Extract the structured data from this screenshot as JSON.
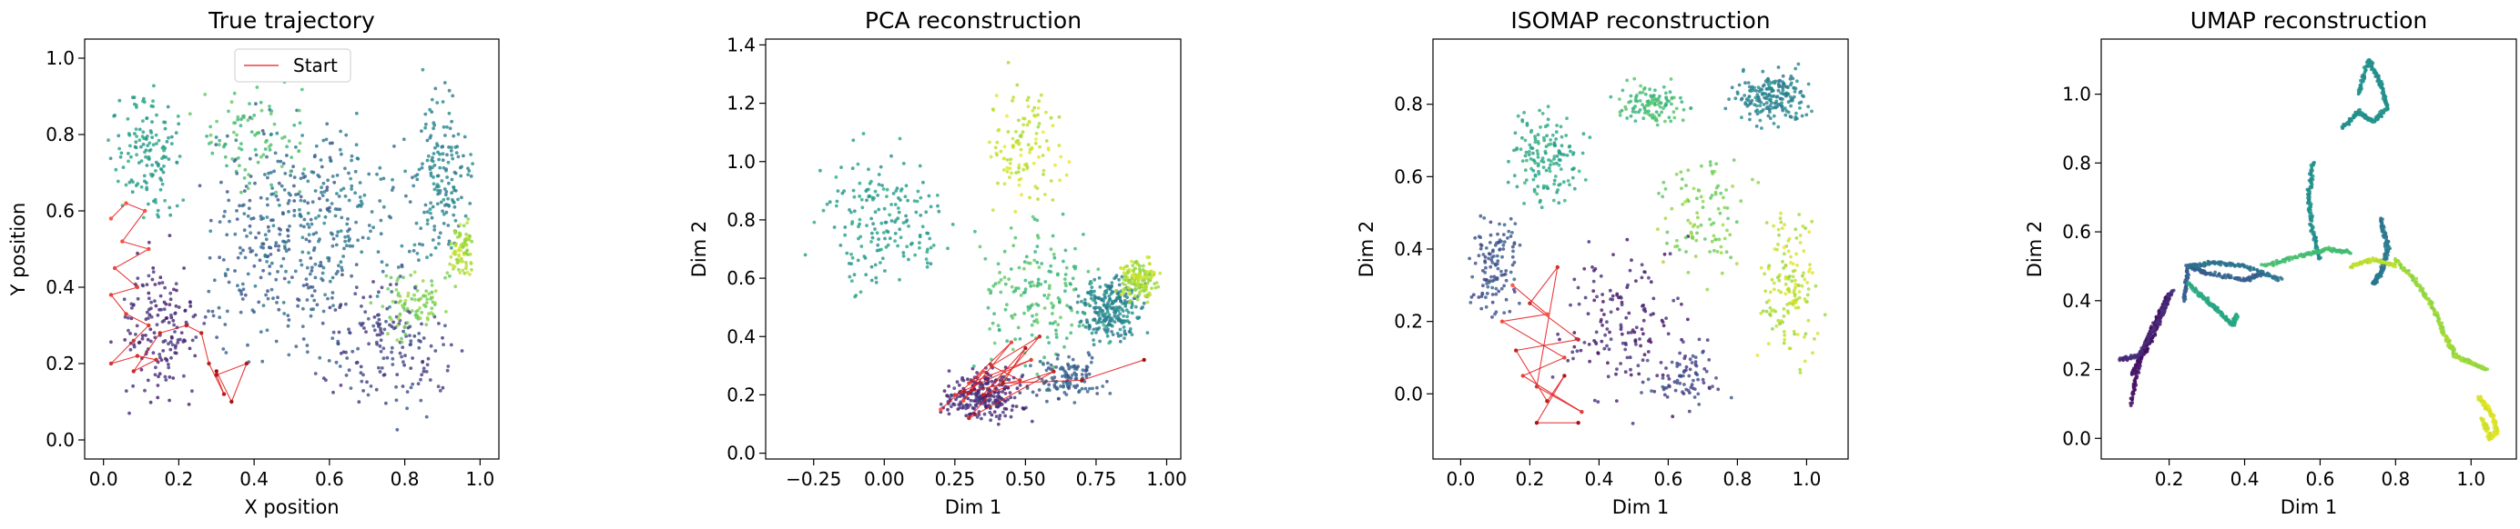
{
  "figure": {
    "colormap": "viridis",
    "trajectory_color": "#e41a1c"
  },
  "chart_data": [
    {
      "type": "scatter",
      "title": "True trajectory",
      "xlabel": "X position",
      "ylabel": "Y position",
      "xlim": [
        -0.05,
        1.05
      ],
      "ylim": [
        -0.05,
        1.05
      ],
      "xticks": [
        0.0,
        0.2,
        0.4,
        0.6,
        0.8,
        1.0
      ],
      "xtick_labels": [
        "0.0",
        "0.2",
        "0.4",
        "0.6",
        "0.8",
        "1.0"
      ],
      "yticks": [
        0.0,
        0.2,
        0.4,
        0.6,
        0.8,
        1.0
      ],
      "ytick_labels": [
        "0.0",
        "0.2",
        "0.4",
        "0.6",
        "0.8",
        "1.0"
      ],
      "legend": {
        "label": "Start",
        "location": "upper-center"
      },
      "clusters": [
        {
          "cx": 0.12,
          "cy": 0.75,
          "rx": 0.12,
          "ry": 0.22,
          "n": 140,
          "t": 0.55
        },
        {
          "cx": 0.15,
          "cy": 0.3,
          "rx": 0.15,
          "ry": 0.28,
          "n": 160,
          "t": 0.12
        },
        {
          "cx": 0.45,
          "cy": 0.5,
          "rx": 0.3,
          "ry": 0.45,
          "n": 260,
          "t": 0.3
        },
        {
          "cx": 0.4,
          "cy": 0.8,
          "rx": 0.2,
          "ry": 0.18,
          "n": 90,
          "t": 0.7
        },
        {
          "cx": 0.75,
          "cy": 0.25,
          "rx": 0.25,
          "ry": 0.25,
          "n": 170,
          "t": 0.2
        },
        {
          "cx": 0.9,
          "cy": 0.7,
          "rx": 0.1,
          "ry": 0.3,
          "n": 160,
          "t": 0.45
        },
        {
          "cx": 0.95,
          "cy": 0.5,
          "rx": 0.05,
          "ry": 0.12,
          "n": 80,
          "t": 0.88
        },
        {
          "cx": 0.82,
          "cy": 0.35,
          "rx": 0.12,
          "ry": 0.12,
          "n": 90,
          "t": 0.8
        },
        {
          "cx": 0.6,
          "cy": 0.6,
          "rx": 0.35,
          "ry": 0.35,
          "n": 200,
          "t": 0.4
        }
      ],
      "trajectory": [
        [
          0.02,
          0.58
        ],
        [
          0.06,
          0.62
        ],
        [
          0.11,
          0.6
        ],
        [
          0.05,
          0.52
        ],
        [
          0.12,
          0.5
        ],
        [
          0.03,
          0.45
        ],
        [
          0.09,
          0.4
        ],
        [
          0.02,
          0.38
        ],
        [
          0.06,
          0.33
        ],
        [
          0.12,
          0.3
        ],
        [
          0.08,
          0.26
        ],
        [
          0.02,
          0.2
        ],
        [
          0.09,
          0.22
        ],
        [
          0.14,
          0.21
        ],
        [
          0.08,
          0.18
        ],
        [
          0.15,
          0.28
        ],
        [
          0.22,
          0.3
        ],
        [
          0.26,
          0.28
        ],
        [
          0.28,
          0.2
        ],
        [
          0.32,
          0.12
        ],
        [
          0.3,
          0.17
        ],
        [
          0.38,
          0.2
        ],
        [
          0.34,
          0.1
        ],
        [
          0.3,
          0.18
        ]
      ],
      "traj_t": [
        0.0,
        1.0
      ]
    },
    {
      "type": "scatter",
      "title": "PCA reconstruction",
      "xlabel": "Dim 1",
      "ylabel": "Dim 2",
      "xlim": [
        -0.42,
        1.05
      ],
      "ylim": [
        -0.02,
        1.42
      ],
      "xticks": [
        -0.25,
        0.0,
        0.25,
        0.5,
        0.75,
        1.0
      ],
      "xtick_labels": [
        "−0.25",
        "0.00",
        "0.25",
        "0.50",
        "0.75",
        "1.00"
      ],
      "yticks": [
        0.0,
        0.2,
        0.4,
        0.6,
        0.8,
        1.0,
        1.2,
        1.4
      ],
      "ytick_labels": [
        "0.0",
        "0.2",
        "0.4",
        "0.6",
        "0.8",
        "1.0",
        "1.2",
        "1.4"
      ],
      "clusters": [
        {
          "cx": 0.0,
          "cy": 0.8,
          "rx": 0.3,
          "ry": 0.35,
          "n": 180,
          "t": 0.55
        },
        {
          "cx": 0.35,
          "cy": 0.2,
          "rx": 0.2,
          "ry": 0.12,
          "n": 260,
          "t": 0.12
        },
        {
          "cx": 0.8,
          "cy": 0.5,
          "rx": 0.15,
          "ry": 0.15,
          "n": 260,
          "t": 0.45
        },
        {
          "cx": 0.9,
          "cy": 0.6,
          "rx": 0.1,
          "ry": 0.12,
          "n": 150,
          "t": 0.88
        },
        {
          "cx": 0.5,
          "cy": 1.05,
          "rx": 0.2,
          "ry": 0.3,
          "n": 120,
          "t": 0.92
        },
        {
          "cx": 0.55,
          "cy": 0.55,
          "rx": 0.3,
          "ry": 0.35,
          "n": 170,
          "t": 0.7
        },
        {
          "cx": 0.65,
          "cy": 0.25,
          "rx": 0.2,
          "ry": 0.1,
          "n": 120,
          "t": 0.3
        }
      ],
      "trajectory": [
        [
          0.2,
          0.15
        ],
        [
          0.35,
          0.28
        ],
        [
          0.28,
          0.18
        ],
        [
          0.45,
          0.38
        ],
        [
          0.3,
          0.24
        ],
        [
          0.52,
          0.32
        ],
        [
          0.25,
          0.2
        ],
        [
          0.48,
          0.25
        ],
        [
          0.38,
          0.3
        ],
        [
          0.55,
          0.4
        ],
        [
          0.3,
          0.12
        ],
        [
          0.6,
          0.28
        ],
        [
          0.35,
          0.2
        ],
        [
          0.5,
          0.36
        ],
        [
          0.42,
          0.24
        ],
        [
          0.7,
          0.25
        ],
        [
          0.92,
          0.32
        ]
      ],
      "traj_t": [
        0.0,
        1.0
      ]
    },
    {
      "type": "scatter",
      "title": "ISOMAP reconstruction",
      "xlabel": "Dim 1",
      "ylabel": "Dim 2",
      "xlim": [
        -0.08,
        1.12
      ],
      "ylim": [
        -0.18,
        0.98
      ],
      "xticks": [
        0.0,
        0.2,
        0.4,
        0.6,
        0.8,
        1.0
      ],
      "xtick_labels": [
        "0.0",
        "0.2",
        "0.4",
        "0.6",
        "0.8",
        "1.0"
      ],
      "yticks": [
        0.0,
        0.2,
        0.4,
        0.6,
        0.8
      ],
      "ytick_labels": [
        "0.0",
        "0.2",
        "0.4",
        "0.6",
        "0.8"
      ],
      "clusters": [
        {
          "cx": 0.9,
          "cy": 0.82,
          "rx": 0.15,
          "ry": 0.1,
          "n": 200,
          "t": 0.45
        },
        {
          "cx": 0.25,
          "cy": 0.65,
          "rx": 0.15,
          "ry": 0.2,
          "n": 150,
          "t": 0.6
        },
        {
          "cx": 0.55,
          "cy": 0.8,
          "rx": 0.15,
          "ry": 0.08,
          "n": 110,
          "t": 0.68
        },
        {
          "cx": 0.95,
          "cy": 0.3,
          "rx": 0.12,
          "ry": 0.3,
          "n": 150,
          "t": 0.9
        },
        {
          "cx": 0.45,
          "cy": 0.2,
          "rx": 0.25,
          "ry": 0.3,
          "n": 150,
          "t": 0.1
        },
        {
          "cx": 0.1,
          "cy": 0.35,
          "rx": 0.1,
          "ry": 0.2,
          "n": 120,
          "t": 0.25
        },
        {
          "cx": 0.7,
          "cy": 0.5,
          "rx": 0.2,
          "ry": 0.25,
          "n": 100,
          "t": 0.8
        },
        {
          "cx": 0.65,
          "cy": 0.05,
          "rx": 0.15,
          "ry": 0.15,
          "n": 80,
          "t": 0.2
        }
      ],
      "trajectory": [
        [
          0.15,
          0.3
        ],
        [
          0.25,
          0.22
        ],
        [
          0.12,
          0.2
        ],
        [
          0.3,
          0.1
        ],
        [
          0.18,
          0.05
        ],
        [
          0.35,
          -0.05
        ],
        [
          0.22,
          0.02
        ],
        [
          0.28,
          0.35
        ],
        [
          0.2,
          0.25
        ],
        [
          0.34,
          0.15
        ],
        [
          0.16,
          0.12
        ],
        [
          0.25,
          -0.02
        ],
        [
          0.3,
          0.05
        ],
        [
          0.22,
          -0.08
        ],
        [
          0.34,
          -0.08
        ]
      ],
      "traj_t": [
        0.0,
        1.0
      ]
    },
    {
      "type": "scatter",
      "title": "UMAP reconstruction",
      "xlabel": "Dim 1",
      "ylabel": "Dim 2",
      "xlim": [
        0.02,
        1.12
      ],
      "ylim": [
        -0.06,
        1.16
      ],
      "xticks": [
        0.2,
        0.4,
        0.6,
        0.8,
        1.0
      ],
      "xtick_labels": [
        "0.2",
        "0.4",
        "0.6",
        "0.8",
        "1.0"
      ],
      "yticks": [
        0.0,
        0.2,
        0.4,
        0.6,
        0.8,
        1.0
      ],
      "ytick_labels": [
        "0.0",
        "0.2",
        "0.4",
        "0.6",
        "0.8",
        "1.0"
      ],
      "curves": [
        {
          "t": 0.05,
          "pts": [
            [
              0.1,
              0.1
            ],
            [
              0.12,
              0.22
            ],
            [
              0.16,
              0.3
            ],
            [
              0.2,
              0.42
            ],
            [
              0.17,
              0.35
            ],
            [
              0.14,
              0.28
            ],
            [
              0.1,
              0.18
            ]
          ]
        },
        {
          "t": 0.12,
          "pts": [
            [
              0.07,
              0.23
            ],
            [
              0.12,
              0.24
            ],
            [
              0.18,
              0.36
            ],
            [
              0.21,
              0.43
            ]
          ]
        },
        {
          "t": 0.3,
          "pts": [
            [
              0.24,
              0.4
            ],
            [
              0.25,
              0.5
            ],
            [
              0.3,
              0.48
            ],
            [
              0.4,
              0.46
            ],
            [
              0.45,
              0.48
            ]
          ]
        },
        {
          "t": 0.38,
          "pts": [
            [
              0.25,
              0.5
            ],
            [
              0.32,
              0.51
            ],
            [
              0.4,
              0.5
            ],
            [
              0.5,
              0.46
            ]
          ]
        },
        {
          "t": 0.6,
          "pts": [
            [
              0.25,
              0.45
            ],
            [
              0.3,
              0.4
            ],
            [
              0.33,
              0.37
            ],
            [
              0.37,
              0.33
            ],
            [
              0.38,
              0.36
            ]
          ]
        },
        {
          "t": 0.5,
          "pts": [
            [
              0.58,
              0.8
            ],
            [
              0.57,
              0.7
            ],
            [
              0.58,
              0.6
            ],
            [
              0.6,
              0.52
            ]
          ]
        },
        {
          "t": 0.7,
          "pts": [
            [
              0.45,
              0.5
            ],
            [
              0.55,
              0.53
            ],
            [
              0.62,
              0.55
            ],
            [
              0.68,
              0.54
            ]
          ]
        },
        {
          "t": 0.4,
          "pts": [
            [
              0.76,
              0.64
            ],
            [
              0.78,
              0.55
            ],
            [
              0.76,
              0.48
            ],
            [
              0.74,
              0.45
            ]
          ]
        },
        {
          "t": 0.5,
          "pts": [
            [
              0.7,
              1.0
            ],
            [
              0.73,
              1.1
            ],
            [
              0.76,
              1.03
            ],
            [
              0.78,
              0.96
            ],
            [
              0.74,
              0.92
            ],
            [
              0.7,
              0.95
            ],
            [
              0.66,
              0.9
            ]
          ]
        },
        {
          "t": 0.85,
          "pts": [
            [
              0.8,
              0.52
            ],
            [
              0.85,
              0.46
            ],
            [
              0.9,
              0.38
            ],
            [
              0.93,
              0.3
            ],
            [
              0.96,
              0.24
            ],
            [
              1.0,
              0.22
            ],
            [
              1.04,
              0.2
            ]
          ]
        },
        {
          "t": 0.95,
          "pts": [
            [
              1.02,
              0.12
            ],
            [
              1.05,
              0.08
            ],
            [
              1.07,
              0.02
            ],
            [
              1.05,
              0.0
            ],
            [
              1.03,
              0.06
            ]
          ]
        },
        {
          "t": 0.9,
          "pts": [
            [
              0.68,
              0.5
            ],
            [
              0.74,
              0.52
            ],
            [
              0.8,
              0.5
            ]
          ]
        }
      ]
    }
  ]
}
